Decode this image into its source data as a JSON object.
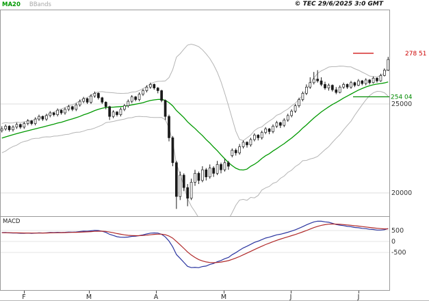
{
  "header": {
    "ma_label": "MA20",
    "bbands_label": "BBands",
    "copyright": "© TEC 29/6/2025 3:0 GMT"
  },
  "macd_panel_label": "MACD",
  "colors": {
    "ma20": "#009900",
    "bbands": "#b4b4b4",
    "macd_line": "#2b35a0",
    "macd_signal": "#b02828",
    "resistance": "#cc0000",
    "support": "#008a00",
    "candle": "#1a1a1a",
    "grid": "#dddddd",
    "frame": "#999999",
    "tick_text": "#333333"
  },
  "chart_data": [
    {
      "type": "candlestick",
      "name": "price-panel",
      "x_axis_month_labels": [
        "F",
        "M",
        "A",
        "M",
        "J",
        "J"
      ],
      "y_ticks": [
        {
          "value": 25000,
          "label": "25000"
        },
        {
          "value": 20000,
          "label": "20000"
        }
      ],
      "levels": [
        {
          "value": 27851,
          "label": "278 51",
          "role": "resistance"
        },
        {
          "value": 25404,
          "label": "254 04",
          "role": "support"
        }
      ],
      "overlays": [
        "MA20",
        "BBands(20,2)"
      ],
      "indicator_warmup_closes": [
        21600,
        21750,
        21900,
        22050,
        22000,
        22200,
        22350,
        22300,
        22500,
        22650,
        22600,
        22800,
        22950,
        22900,
        23100,
        23200,
        23150,
        23300,
        23400,
        23350,
        23450,
        23500,
        23450,
        23550,
        23500
      ],
      "candles_ohlc": [
        [
          23500,
          23750,
          23400,
          23600
        ],
        [
          23600,
          23850,
          23500,
          23750
        ],
        [
          23750,
          23800,
          23450,
          23550
        ],
        [
          23550,
          23800,
          23450,
          23700
        ],
        [
          23700,
          23950,
          23600,
          23850
        ],
        [
          23850,
          23900,
          23600,
          23700
        ],
        [
          23700,
          24000,
          23600,
          23900
        ],
        [
          23900,
          24150,
          23800,
          24050
        ],
        [
          24050,
          24100,
          23800,
          23900
        ],
        [
          23900,
          24250,
          23800,
          24150
        ],
        [
          24150,
          24400,
          24050,
          24300
        ],
        [
          24300,
          24350,
          24050,
          24150
        ],
        [
          24150,
          24450,
          24050,
          24350
        ],
        [
          24350,
          24600,
          24250,
          24500
        ],
        [
          24500,
          24550,
          24300,
          24400
        ],
        [
          24400,
          24750,
          24300,
          24650
        ],
        [
          24650,
          24700,
          24400,
          24500
        ],
        [
          24500,
          24800,
          24400,
          24700
        ],
        [
          24700,
          24950,
          24600,
          24850
        ],
        [
          24850,
          24900,
          24600,
          24700
        ],
        [
          24700,
          25050,
          24600,
          24950
        ],
        [
          24950,
          25250,
          24850,
          25150
        ],
        [
          25150,
          25400,
          25050,
          25300
        ],
        [
          25300,
          25350,
          25000,
          25100
        ],
        [
          25100,
          25550,
          25000,
          25450
        ],
        [
          25450,
          25700,
          25350,
          25600
        ],
        [
          25600,
          25650,
          25250,
          25350
        ],
        [
          25350,
          25400,
          25000,
          25100
        ],
        [
          25100,
          25150,
          24700,
          24850
        ],
        [
          24850,
          24900,
          24100,
          24300
        ],
        [
          24300,
          24650,
          24200,
          24550
        ],
        [
          24550,
          24600,
          24300,
          24400
        ],
        [
          24400,
          24800,
          24300,
          24700
        ],
        [
          24700,
          25000,
          24600,
          24900
        ],
        [
          24900,
          25250,
          24800,
          25150
        ],
        [
          25150,
          25500,
          25050,
          25400
        ],
        [
          25400,
          25450,
          25150,
          25250
        ],
        [
          25250,
          25650,
          25150,
          25550
        ],
        [
          25550,
          25850,
          25450,
          25750
        ],
        [
          25750,
          26050,
          25650,
          25950
        ],
        [
          25950,
          26200,
          25850,
          26100
        ],
        [
          26100,
          26150,
          25800,
          25900
        ],
        [
          25900,
          25950,
          25600,
          25750
        ],
        [
          25750,
          25800,
          25100,
          25200
        ],
        [
          25200,
          25250,
          24100,
          24300
        ],
        [
          24300,
          24400,
          22900,
          23100
        ],
        [
          23100,
          23200,
          21500,
          21700
        ],
        [
          21700,
          21800,
          19100,
          19800
        ],
        [
          19800,
          21200,
          19600,
          21000
        ],
        [
          21000,
          21100,
          20100,
          20300
        ],
        [
          20300,
          20500,
          19250,
          19700
        ],
        [
          19700,
          20800,
          19600,
          20600
        ],
        [
          20600,
          21300,
          20400,
          21100
        ],
        [
          21100,
          21200,
          20500,
          20700
        ],
        [
          20700,
          21500,
          20600,
          21300
        ],
        [
          21300,
          21400,
          20700,
          20900
        ],
        [
          20900,
          21600,
          20800,
          21400
        ],
        [
          21400,
          21500,
          20900,
          21100
        ],
        [
          21100,
          21800,
          21000,
          21600
        ],
        [
          21600,
          21700,
          21100,
          21300
        ],
        [
          21300,
          21900,
          21200,
          21700
        ],
        [
          21700,
          21800,
          21300,
          21500
        ],
        [
          22100,
          22500,
          22000,
          22400
        ],
        [
          22400,
          22500,
          22100,
          22250
        ],
        [
          22250,
          22750,
          22150,
          22600
        ],
        [
          22600,
          22950,
          22500,
          22850
        ],
        [
          22850,
          22900,
          22550,
          22700
        ],
        [
          22700,
          23100,
          22600,
          23000
        ],
        [
          23000,
          23350,
          22900,
          23250
        ],
        [
          23250,
          23300,
          22950,
          23100
        ],
        [
          23100,
          23500,
          23000,
          23400
        ],
        [
          23400,
          23700,
          23300,
          23600
        ],
        [
          23600,
          23650,
          23300,
          23450
        ],
        [
          23450,
          23850,
          23350,
          23750
        ],
        [
          23750,
          24050,
          23650,
          23950
        ],
        [
          23950,
          24000,
          23650,
          23800
        ],
        [
          23800,
          24200,
          23700,
          24100
        ],
        [
          24100,
          24450,
          24000,
          24350
        ],
        [
          24350,
          24700,
          24250,
          24600
        ],
        [
          24600,
          25000,
          24500,
          24900
        ],
        [
          24900,
          25350,
          24800,
          25250
        ],
        [
          25250,
          25700,
          25150,
          25600
        ],
        [
          25600,
          26100,
          25500,
          25950
        ],
        [
          25950,
          26500,
          25850,
          26200
        ],
        [
          26200,
          26800,
          26100,
          26400
        ],
        [
          26400,
          26900,
          26200,
          26300
        ],
        [
          26300,
          26500,
          26000,
          26100
        ],
        [
          26100,
          26250,
          25800,
          25900
        ],
        [
          25900,
          26150,
          25750,
          26050
        ],
        [
          26050,
          26100,
          25700,
          25800
        ],
        [
          25800,
          25950,
          25550,
          25650
        ],
        [
          25650,
          26050,
          25600,
          25950
        ],
        [
          25950,
          26200,
          25850,
          26100
        ],
        [
          26100,
          26150,
          25850,
          25950
        ],
        [
          25950,
          26300,
          25850,
          26200
        ],
        [
          26200,
          26250,
          25950,
          26050
        ],
        [
          26050,
          26400,
          26000,
          26300
        ],
        [
          26300,
          26350,
          26050,
          26150
        ],
        [
          26150,
          26450,
          26050,
          26350
        ],
        [
          26350,
          26400,
          26100,
          26200
        ],
        [
          26200,
          26550,
          26150,
          26450
        ],
        [
          26450,
          26500,
          26200,
          26300
        ],
        [
          26300,
          26700,
          26250,
          26600
        ],
        [
          26600,
          27000,
          26550,
          26900
        ],
        [
          26900,
          27650,
          26850,
          27500
        ]
      ]
    },
    {
      "type": "line",
      "name": "macd-panel",
      "derived_from": "candles_ohlc closes via MACD(12,26,9)",
      "series": [
        {
          "name": "MACD",
          "color_key": "macd_line"
        },
        {
          "name": "Signal",
          "color_key": "macd_signal"
        }
      ],
      "y_ticks": [
        {
          "value": 500,
          "label": "500"
        },
        {
          "value": 0,
          "label": "0"
        },
        {
          "value": -500,
          "label": "-500"
        }
      ]
    }
  ]
}
